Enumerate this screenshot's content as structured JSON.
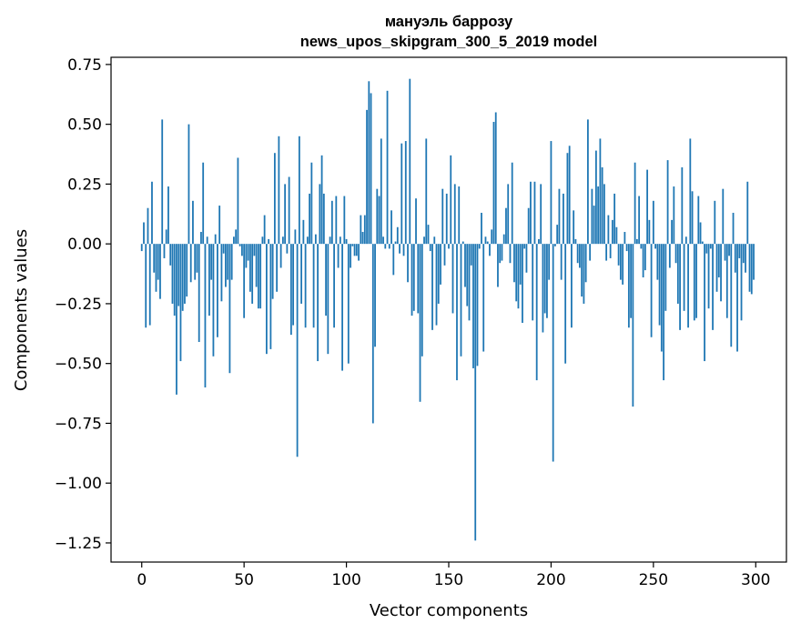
{
  "chart_data": {
    "type": "bar",
    "title_line1": "мануэль баррозу",
    "title_line2": "news_upos_skipgram_300_5_2019 model",
    "xlabel": "Vector components",
    "ylabel": "Components values",
    "xlim": [
      -15,
      315
    ],
    "ylim": [
      -1.33,
      0.78
    ],
    "xticks": [
      0,
      50,
      100,
      150,
      200,
      250,
      300
    ],
    "yticks": [
      0.75,
      0.5,
      0.25,
      0.0,
      -0.25,
      -0.5,
      -0.75,
      -1.0,
      -1.25
    ],
    "ytick_labels": [
      "0.75",
      "0.50",
      "0.25",
      "0.00",
      "−0.25",
      "−0.50",
      "−0.75",
      "−1.00",
      "−1.25"
    ],
    "xtick_labels": [
      "0",
      "50",
      "100",
      "150",
      "200",
      "250",
      "300"
    ],
    "grid": false,
    "bar_color": "#1f77b4",
    "values": [
      -0.03,
      0.09,
      -0.35,
      0.15,
      -0.34,
      0.26,
      -0.12,
      -0.2,
      -0.15,
      -0.23,
      0.52,
      -0.06,
      0.06,
      0.24,
      -0.09,
      -0.25,
      -0.3,
      -0.63,
      -0.26,
      -0.49,
      -0.28,
      -0.25,
      -0.22,
      0.5,
      -0.16,
      0.18,
      -0.15,
      -0.12,
      -0.41,
      0.05,
      0.34,
      -0.6,
      0.03,
      -0.3,
      -0.15,
      -0.47,
      0.04,
      -0.39,
      0.16,
      -0.24,
      -0.04,
      -0.18,
      -0.15,
      -0.54,
      -0.15,
      0.03,
      0.06,
      0.36,
      -0.01,
      -0.05,
      -0.31,
      -0.1,
      -0.07,
      -0.2,
      -0.25,
      -0.05,
      -0.18,
      -0.27,
      -0.27,
      0.03,
      0.12,
      -0.46,
      0.02,
      -0.44,
      -0.23,
      0.38,
      -0.2,
      0.45,
      -0.1,
      0.03,
      0.25,
      -0.04,
      0.28,
      -0.38,
      -0.34,
      0.06,
      -0.89,
      0.45,
      -0.25,
      0.1,
      -0.35,
      0.03,
      0.21,
      0.34,
      -0.35,
      0.04,
      -0.49,
      0.25,
      0.37,
      0.21,
      -0.3,
      -0.46,
      0.03,
      0.18,
      -0.35,
      0.2,
      -0.1,
      0.03,
      -0.53,
      0.2,
      0.02,
      -0.5,
      -0.1,
      -0.01,
      -0.05,
      -0.05,
      -0.07,
      0.12,
      0.05,
      0.12,
      0.56,
      0.68,
      0.63,
      -0.75,
      -0.43,
      0.23,
      0.2,
      0.44,
      0.03,
      -0.02,
      0.64,
      -0.02,
      0.14,
      -0.13,
      0.01,
      0.07,
      -0.04,
      0.42,
      -0.05,
      0.43,
      -0.16,
      0.69,
      -0.3,
      -0.28,
      0.19,
      -0.29,
      -0.66,
      -0.47,
      0.03,
      0.44,
      0.08,
      -0.03,
      -0.36,
      0.03,
      -0.34,
      -0.25,
      -0.17,
      0.23,
      -0.09,
      0.21,
      -0.02,
      0.37,
      -0.29,
      0.25,
      -0.57,
      0.24,
      -0.47,
      0.01,
      -0.18,
      -0.26,
      -0.32,
      -0.09,
      -0.52,
      -1.24,
      -0.51,
      -0.02,
      0.13,
      -0.45,
      0.03,
      0.01,
      -0.05,
      0.06,
      0.51,
      0.55,
      -0.18,
      -0.08,
      -0.07,
      0.04,
      0.15,
      0.25,
      -0.08,
      0.34,
      -0.16,
      -0.24,
      -0.27,
      -0.17,
      -0.33,
      -0.02,
      -0.12,
      0.15,
      0.26,
      -0.32,
      0.26,
      -0.57,
      0.02,
      0.25,
      -0.37,
      -0.29,
      -0.31,
      -0.15,
      0.43,
      -0.91,
      -0.01,
      0.08,
      0.23,
      -0.15,
      0.21,
      -0.5,
      0.38,
      0.41,
      -0.35,
      0.14,
      0.02,
      -0.08,
      -0.1,
      -0.22,
      -0.25,
      -0.16,
      0.52,
      -0.07,
      0.23,
      0.16,
      0.39,
      0.24,
      0.44,
      0.32,
      0.25,
      -0.07,
      0.12,
      -0.06,
      0.1,
      0.21,
      0.07,
      -0.09,
      -0.15,
      -0.17,
      0.05,
      -0.03,
      -0.35,
      -0.31,
      -0.68,
      0.34,
      0.02,
      0.2,
      -0.02,
      -0.14,
      -0.11,
      0.31,
      0.1,
      -0.39,
      0.18,
      -0.02,
      -0.15,
      -0.34,
      -0.45,
      -0.57,
      -0.28,
      0.35,
      -0.1,
      0.1,
      0.24,
      -0.08,
      -0.25,
      -0.36,
      0.32,
      -0.28,
      0.03,
      -0.35,
      0.44,
      0.22,
      -0.32,
      -0.31,
      0.2,
      0.09,
      0.01,
      -0.49,
      -0.04,
      -0.27,
      -0.02,
      -0.36,
      0.18,
      -0.2,
      -0.14,
      -0.24,
      0.23,
      -0.07,
      -0.31,
      -0.05,
      -0.43,
      0.13,
      -0.12,
      -0.45,
      -0.06,
      -0.32,
      -0.08,
      -0.12,
      0.26,
      -0.2,
      -0.21,
      -0.15
    ]
  }
}
